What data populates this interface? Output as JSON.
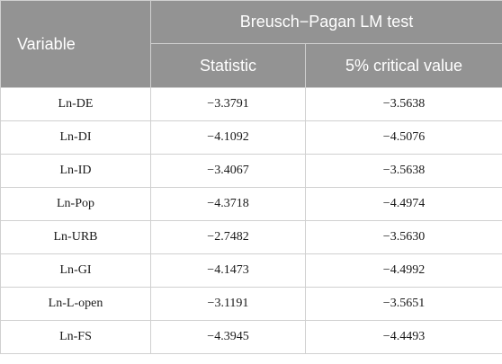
{
  "table": {
    "header": {
      "variable": "Variable",
      "group": "Breusch−Pagan LM test",
      "statistic": "Statistic",
      "critical": "5% critical value"
    },
    "rows": [
      {
        "variable": "Ln-DE",
        "statistic": "−3.3791",
        "critical": "−3.5638"
      },
      {
        "variable": "Ln-DI",
        "statistic": "−4.1092",
        "critical": "−4.5076"
      },
      {
        "variable": "Ln-ID",
        "statistic": "−3.4067",
        "critical": "−3.5638"
      },
      {
        "variable": "Ln-Pop",
        "statistic": "−4.3718",
        "critical": "−4.4974"
      },
      {
        "variable": "Ln-URB",
        "statistic": "−2.7482",
        "critical": "−3.5630"
      },
      {
        "variable": "Ln-GI",
        "statistic": "−4.1473",
        "critical": "−4.4992"
      },
      {
        "variable": "Ln-L-open",
        "statistic": "−3.1191",
        "critical": "−3.5651"
      },
      {
        "variable": "Ln-FS",
        "statistic": "−4.3945",
        "critical": "−4.4493"
      }
    ]
  }
}
